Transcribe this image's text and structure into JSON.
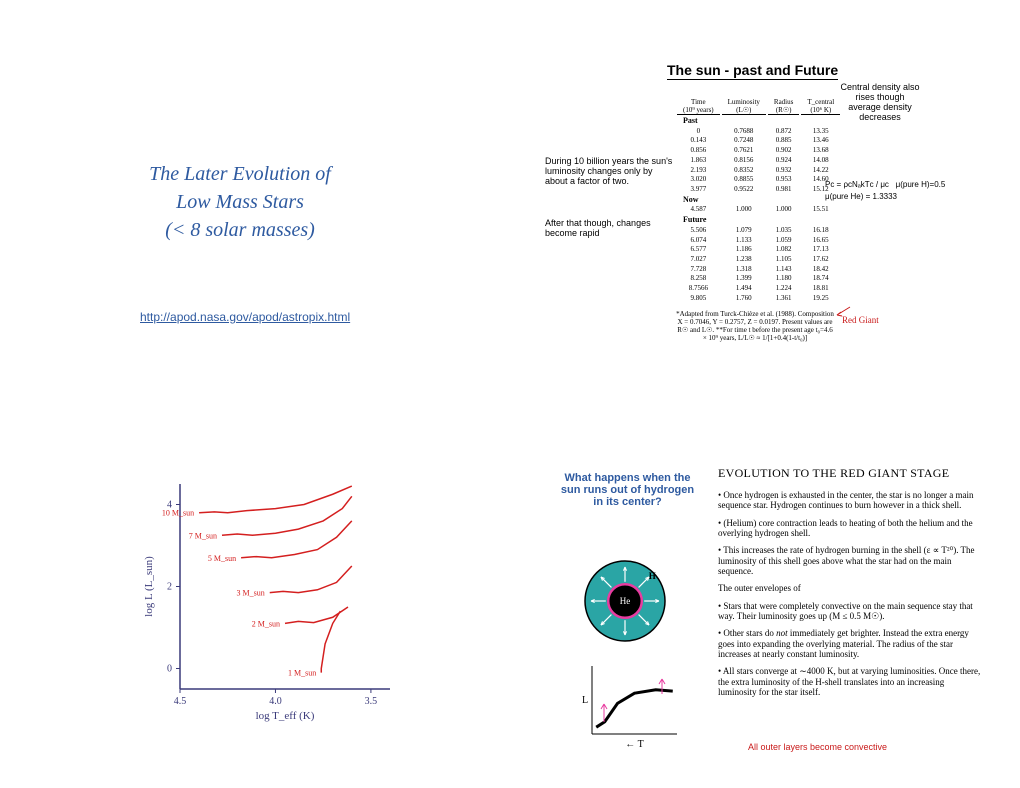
{
  "q1": {
    "title_line1": "The  Later  Evolution of",
    "title_line2": "Low  Mass  Stars",
    "title_line3": "(<  8  solar  masses)",
    "link_text": "http://apod.nasa.gov/apod/astropix.html",
    "title_color": "#2e5aa0"
  },
  "q2": {
    "title": "The sun - past and Future",
    "note_density": "Central density also rises though average density decreases",
    "note_left1": "During 10 billion years the sun's luminosity changes only by about a factor of two.",
    "note_left2": "After that though, changes become rapid",
    "formula_pc": "Pс = ρсNₐkTс / μс",
    "formula_mu_h": "μ(pure H)=0.5",
    "formula_mu_he": "μ(pure He) = 1.3333",
    "table": {
      "headers": [
        "Time\n(10⁹ years)",
        "Luminosity\n(L☉)",
        "Radius\n(R☉)",
        "T_central\n(10⁶ K)"
      ],
      "periods": [
        {
          "label": "Past",
          "rows": [
            [
              "0",
              "0.7688",
              "0.872",
              "13.35"
            ],
            [
              "0.143",
              "0.7248",
              "0.885",
              "13.46"
            ],
            [
              "0.856",
              "0.7621",
              "0.902",
              "13.68"
            ],
            [
              "1.863",
              "0.8156",
              "0.924",
              "14.08"
            ],
            [
              "2.193",
              "0.8352",
              "0.932",
              "14.22"
            ],
            [
              "3.020",
              "0.8855",
              "0.953",
              "14.60"
            ],
            [
              "3.977",
              "0.9522",
              "0.981",
              "15.12"
            ]
          ]
        },
        {
          "label": "Now",
          "rows": [
            [
              "4.587",
              "1.000",
              "1.000",
              "15.51"
            ]
          ]
        },
        {
          "label": "Future",
          "rows": [
            [
              "5.506",
              "1.079",
              "1.035",
              "16.18"
            ],
            [
              "6.074",
              "1.133",
              "1.059",
              "16.65"
            ],
            [
              "6.577",
              "1.186",
              "1.082",
              "17.13"
            ],
            [
              "7.027",
              "1.238",
              "1.105",
              "17.62"
            ],
            [
              "7.728",
              "1.318",
              "1.143",
              "18.42"
            ],
            [
              "8.258",
              "1.399",
              "1.180",
              "18.74"
            ],
            [
              "8.7566",
              "1.494",
              "1.224",
              "18.81"
            ],
            [
              "9.805",
              "1.760",
              "1.361",
              "19.25"
            ]
          ]
        }
      ]
    },
    "footnote": "*Adapted from Turck-Chièze et al. (1988). Composition X = 0.7046, Y = 0.2757, Z = 0.0197. Present values are R☉ and L☉. **For time t before the present age t₀=4.6 × 10⁹ years, L/L☉ ≈ 1/[1+0.4(1-t/t₀)]",
    "red_giant_label": "Red Giant"
  },
  "q3": {
    "hr_diagram": {
      "type": "line",
      "xlabel": "log T_eff (K)",
      "ylabel": "log L (L_sun)",
      "xlim": [
        4.5,
        3.4
      ],
      "ylim": [
        -0.5,
        4.5
      ],
      "xticks": [
        4.5,
        4.0,
        3.5
      ],
      "yticks": [
        0,
        2,
        4
      ],
      "background_color": "#ffffff",
      "axis_color": "#3a3a7a",
      "label_fontsize": 11,
      "tracks": [
        {
          "label": "10 M_sun",
          "color": "#d41f1f",
          "points": [
            [
              4.4,
              3.8
            ],
            [
              4.32,
              3.82
            ],
            [
              4.25,
              3.8
            ],
            [
              4.15,
              3.85
            ],
            [
              4.0,
              3.9
            ],
            [
              3.85,
              4.0
            ],
            [
              3.7,
              4.25
            ],
            [
              3.6,
              4.45
            ]
          ]
        },
        {
          "label": "7 M_sun",
          "color": "#d41f1f",
          "points": [
            [
              4.28,
              3.25
            ],
            [
              4.2,
              3.28
            ],
            [
              4.12,
              3.25
            ],
            [
              4.0,
              3.3
            ],
            [
              3.88,
              3.4
            ],
            [
              3.75,
              3.6
            ],
            [
              3.65,
              3.9
            ],
            [
              3.6,
              4.2
            ]
          ]
        },
        {
          "label": "5 M_sun",
          "color": "#d41f1f",
          "points": [
            [
              4.18,
              2.7
            ],
            [
              4.1,
              2.73
            ],
            [
              4.02,
              2.7
            ],
            [
              3.9,
              2.78
            ],
            [
              3.78,
              2.9
            ],
            [
              3.68,
              3.2
            ],
            [
              3.6,
              3.6
            ]
          ]
        },
        {
          "label": "3 M_sun",
          "color": "#d41f1f",
          "points": [
            [
              4.03,
              1.85
            ],
            [
              3.96,
              1.88
            ],
            [
              3.88,
              1.85
            ],
            [
              3.78,
              1.92
            ],
            [
              3.68,
              2.1
            ],
            [
              3.6,
              2.5
            ]
          ]
        },
        {
          "label": "2 M_sun",
          "color": "#d41f1f",
          "points": [
            [
              3.95,
              1.1
            ],
            [
              3.88,
              1.15
            ],
            [
              3.8,
              1.12
            ],
            [
              3.7,
              1.25
            ],
            [
              3.62,
              1.5
            ]
          ]
        },
        {
          "label": "1 M_sun",
          "color": "#d41f1f",
          "points": [
            [
              3.76,
              -0.1
            ],
            [
              3.76,
              0.0
            ],
            [
              3.74,
              0.6
            ],
            [
              3.7,
              1.1
            ],
            [
              3.66,
              1.4
            ]
          ]
        }
      ],
      "label_color": "#d41f1f"
    }
  },
  "q4": {
    "blue_question": "What happens when the sun runs out of hydrogen in its center?",
    "section_title": "EVOLUTION TO THE RED GIANT STAGE",
    "bullets": [
      "Once hydrogen is exhausted in the center, the star is no longer a main sequence star. Hydrogen continues to burn however in a thick shell.",
      "(Helium) core contraction leads to heating of both the helium and the overlying hydrogen shell.",
      "This increases the rate of hydrogen burning in the shell (ε ∝ T²⁰). The luminosity of this shell goes above what the star had on the main sequence.",
      "The outer envelopes of",
      "Stars that were completely convective on the main sequence stay that way. Their luminosity goes up (M ≤ 0.5 M☉).",
      "Other stars do not immediately get brighter. Instead the extra energy goes into expanding the overlying material. The radius of the star increases at nearly constant luminosity.",
      "All stars converge at ∼4000 K, but at varying luminosities. Once there, the extra luminosity of the H-shell translates into an increasing luminosity for the star itself."
    ],
    "red_note": "All outer layers become convective",
    "star_diagram": {
      "outer_color": "#2aa5a5",
      "core_color": "#000000",
      "boundary_color": "#e83ca0",
      "arrow_color": "#ffffff",
      "h_label": "H",
      "he_label": "He",
      "radius": 40
    },
    "mini_chart": {
      "xlabel": "← T",
      "ylabel": "L",
      "curve_color": "#000000",
      "arrow_color": "#e83ca0",
      "curve": [
        [
          5,
          10
        ],
        [
          15,
          18
        ],
        [
          30,
          45
        ],
        [
          50,
          60
        ],
        [
          75,
          65
        ],
        [
          95,
          63
        ]
      ]
    }
  }
}
